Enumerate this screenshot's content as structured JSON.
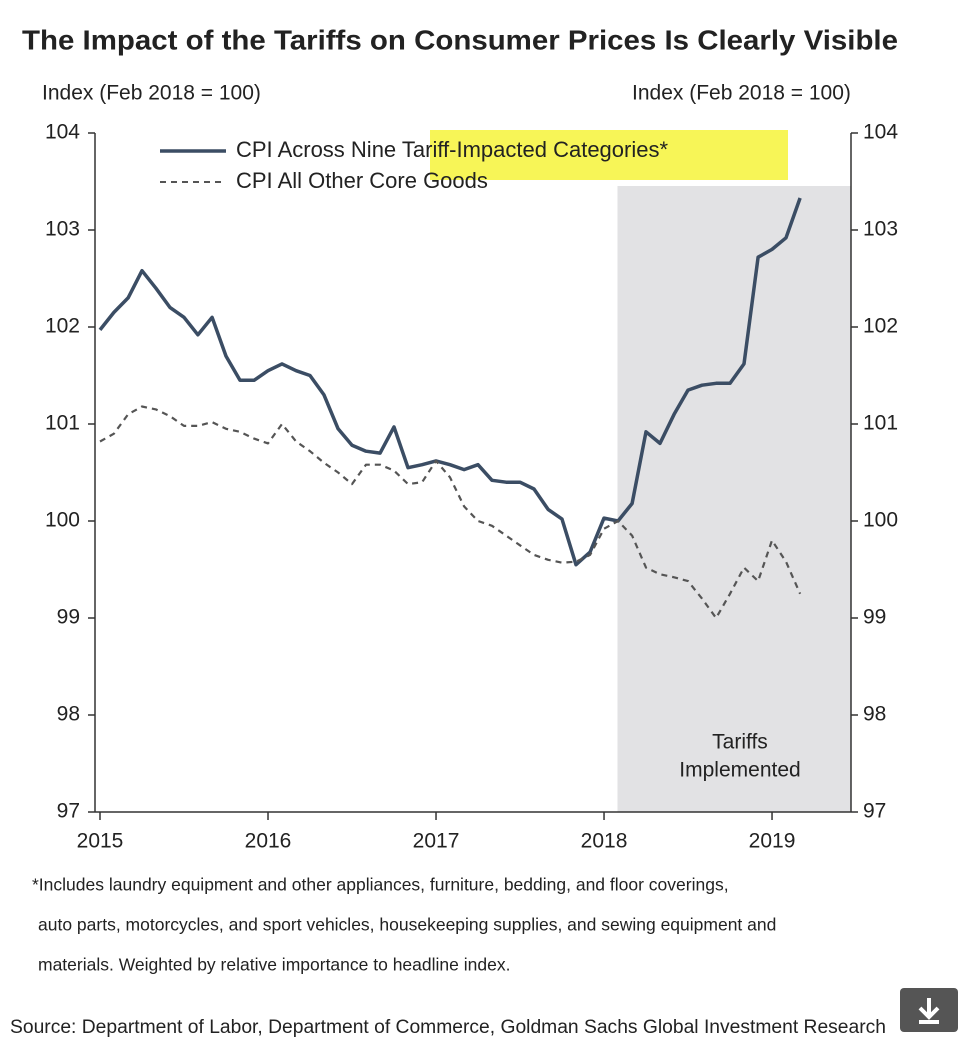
{
  "chart_data": {
    "type": "line",
    "title": "The Impact of the Tariffs on Consumer Prices Is Clearly Visible",
    "y_label": "Index (Feb 2018 = 100)",
    "y2_label": "Index (Feb 2018 = 100)",
    "x": [
      2015,
      2015.083,
      2015.167,
      2015.25,
      2015.333,
      2015.417,
      2015.5,
      2015.583,
      2015.667,
      2015.75,
      2015.833,
      2015.917,
      2016,
      2016.083,
      2016.167,
      2016.25,
      2016.333,
      2016.417,
      2016.5,
      2016.583,
      2016.667,
      2016.75,
      2016.833,
      2016.917,
      2017,
      2017.083,
      2017.167,
      2017.25,
      2017.333,
      2017.417,
      2017.5,
      2017.583,
      2017.667,
      2017.75,
      2017.833,
      2017.917,
      2018,
      2018.083,
      2018.167,
      2018.25,
      2018.333,
      2018.417,
      2018.5,
      2018.583,
      2018.667,
      2018.75,
      2018.833,
      2018.917,
      2019,
      2019.083,
      2019.167
    ],
    "series": [
      {
        "name": "CPI Across Nine Tariff-Impacted Categories*",
        "color": "#3b4d64",
        "dash": false,
        "values": [
          101.97,
          102.15,
          102.3,
          102.58,
          102.4,
          102.2,
          102.1,
          101.92,
          102.1,
          101.7,
          101.45,
          101.45,
          101.55,
          101.62,
          101.55,
          101.5,
          101.3,
          100.95,
          100.78,
          100.72,
          100.7,
          100.97,
          100.55,
          100.58,
          100.62,
          100.58,
          100.53,
          100.58,
          100.42,
          100.4,
          100.4,
          100.33,
          100.12,
          100.02,
          99.55,
          99.68,
          100.03,
          100.0,
          100.18,
          100.92,
          100.8,
          101.1,
          101.35,
          101.4,
          101.42,
          101.42,
          101.62,
          102.72,
          102.8,
          102.92,
          103.33
        ]
      },
      {
        "name": "CPI All Other Core Goods",
        "color": "#555555",
        "dash": true,
        "values": [
          100.82,
          100.9,
          101.1,
          101.18,
          101.15,
          101.08,
          100.98,
          100.98,
          101.02,
          100.95,
          100.92,
          100.85,
          100.8,
          101.0,
          100.82,
          100.72,
          100.6,
          100.5,
          100.38,
          100.58,
          100.58,
          100.52,
          100.38,
          100.4,
          100.62,
          100.45,
          100.15,
          100.0,
          99.95,
          99.85,
          99.75,
          99.65,
          99.6,
          99.57,
          99.58,
          99.65,
          99.92,
          100.0,
          99.85,
          99.52,
          99.45,
          99.42,
          99.38,
          99.2,
          99.0,
          99.25,
          99.52,
          99.38,
          99.8,
          99.58,
          99.25
        ]
      }
    ],
    "xlim": [
      2015,
      2019.47
    ],
    "xticks": [
      2015,
      2016,
      2017,
      2018,
      2019
    ],
    "ylim": [
      97,
      104
    ],
    "yticks": [
      97,
      98,
      99,
      100,
      101,
      102,
      103,
      104
    ],
    "y2lim": [
      97,
      104
    ],
    "y2ticks": [
      97,
      98,
      99,
      100,
      101,
      102,
      103,
      104
    ],
    "legend": "top-left",
    "shaded_region": {
      "x": [
        2018.08,
        2019.47
      ],
      "color": "#e2e2e4",
      "label_lines": [
        "Tariffs",
        "Implemented"
      ]
    },
    "footnote_lines": [
      "*Includes laundry equipment and other appliances, furniture, bedding, and floor coverings,",
      "auto parts, motorcycles, and sport vehicles, housekeeping supplies, and sewing equipment and",
      "materials. Weighted by relative importance to headline index."
    ],
    "source": "Source: Department of Labor, Department of Commerce, Goldman Sachs Global Investment Research"
  }
}
